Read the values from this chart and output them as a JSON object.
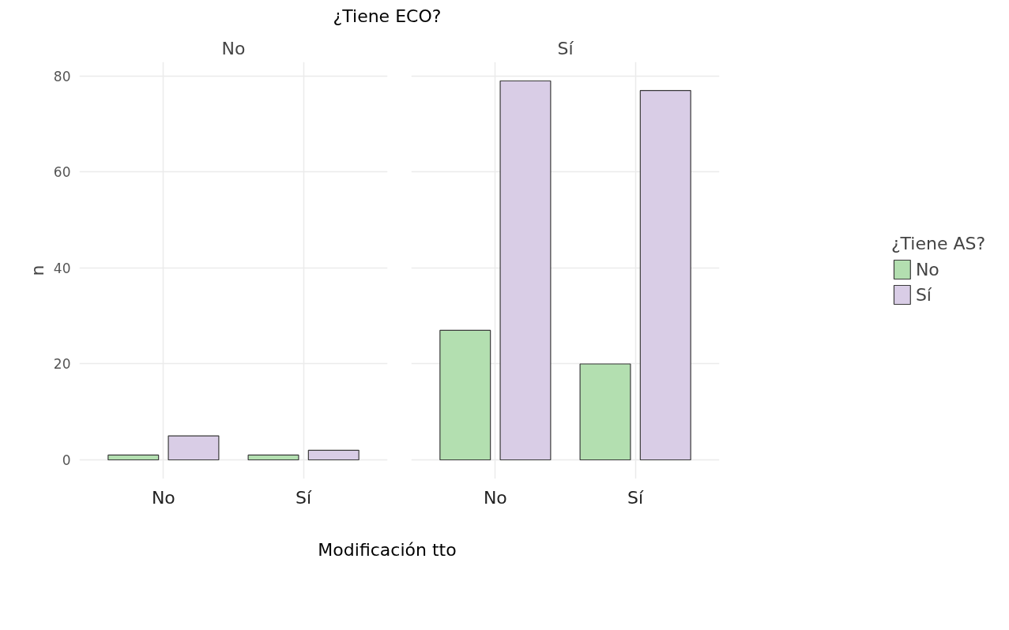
{
  "chart_data": [
    {
      "type": "bar",
      "title": "No",
      "annotations": [
        "¿Tiene ECO?"
      ],
      "xlabel": "Modificación tto",
      "ylabel": "n",
      "categories": [
        "No",
        "Sí"
      ],
      "series": [
        {
          "color": "#b3dfb0",
          "values": [
            1,
            1
          ]
        },
        {
          "color": "#d9cde6",
          "values": [
            5,
            2
          ]
        }
      ],
      "ylim": [
        -3.95,
        82.95
      ],
      "yticks": [
        0,
        20,
        40,
        60,
        80
      ],
      "grid": true
    },
    {
      "type": "bar",
      "title": "Sí",
      "categories": [
        "No",
        "Sí"
      ],
      "legend_title": "¿Tiene AS?",
      "legend": "right",
      "tick_labels": "x",
      "series": [
        {
          "name": "No",
          "color": "#b3dfb0",
          "values": [
            27,
            20
          ]
        },
        {
          "name": "Sí",
          "color": "#d9cde6",
          "values": [
            79,
            77
          ]
        }
      ],
      "ylim": [
        -3.95,
        82.95
      ],
      "yticks": [
        0,
        20,
        40,
        60,
        80
      ],
      "grid": true
    }
  ]
}
